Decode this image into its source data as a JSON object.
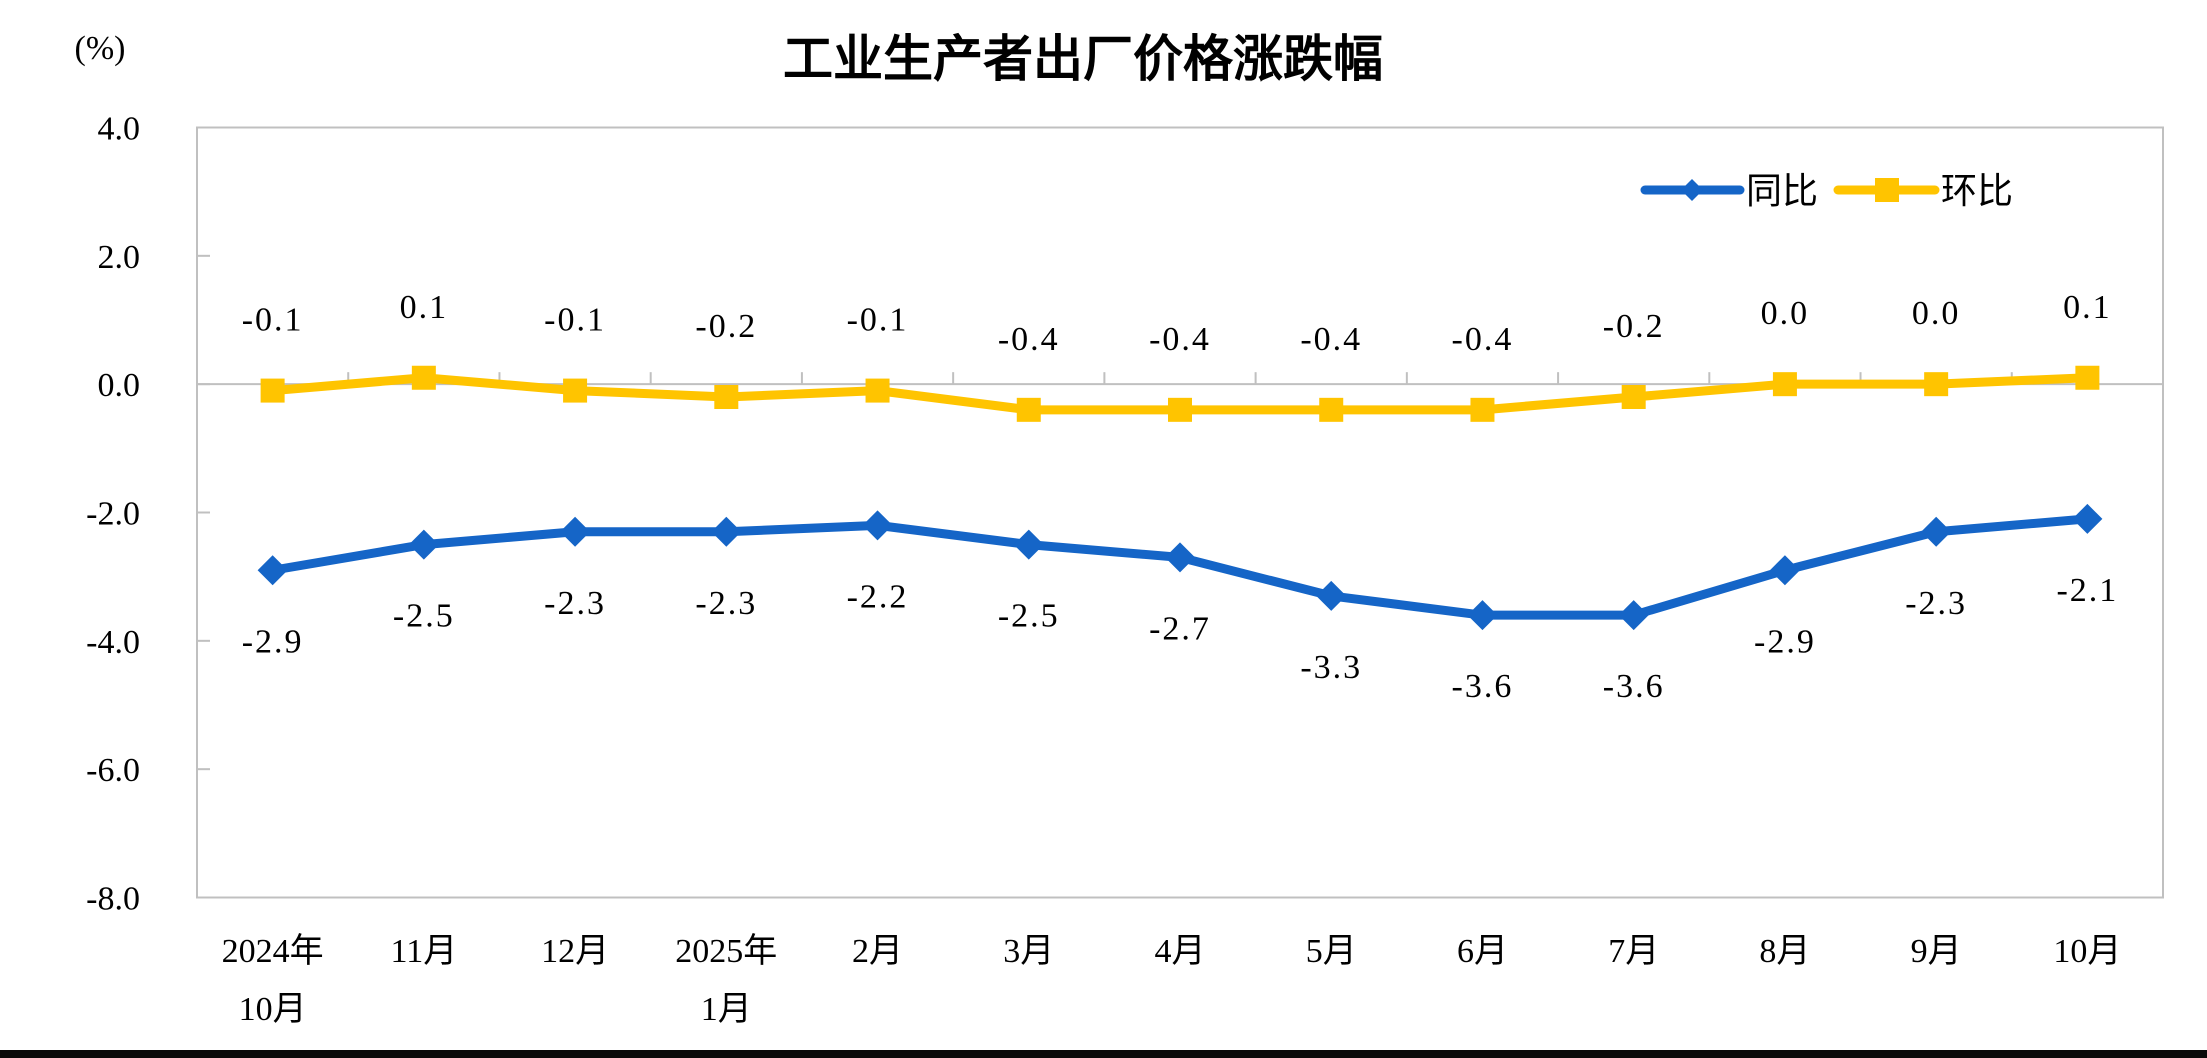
{
  "title": "工业生产者出厂价格涨跌幅",
  "unit_label": "(%)",
  "legend": [
    {
      "label": "同比",
      "color": "#1565C7",
      "marker": "diamond"
    },
    {
      "label": "环比",
      "color": "#FFC400",
      "marker": "square"
    }
  ],
  "colors": {
    "tongbi_blue": "#1565C7",
    "huanbi_yellow": "#FFC400",
    "axis_gray": "#C0C0C0",
    "text_black": "#000000",
    "bottom_bar_black": "#0a0a0a"
  },
  "chart_data": {
    "type": "line",
    "title": "工业生产者出厂价格涨跌幅",
    "ylabel": "(%)",
    "xlabel": "",
    "ylim": [
      -8.0,
      4.0
    ],
    "grid": "zero-axis-line-only",
    "legend_position": "top-right-inside",
    "categories": [
      [
        "2024年",
        "10月"
      ],
      [
        "11月"
      ],
      [
        "12月"
      ],
      [
        "2025年",
        "1月"
      ],
      [
        "2月"
      ],
      [
        "3月"
      ],
      [
        "4月"
      ],
      [
        "5月"
      ],
      [
        "6月"
      ],
      [
        "7月"
      ],
      [
        "8月"
      ],
      [
        "9月"
      ],
      [
        "10月"
      ]
    ],
    "yticks": {
      "values": [
        4,
        2,
        0,
        -2,
        -4,
        -6,
        -8
      ],
      "labels": [
        "4.0",
        "2.0",
        "0.0",
        "-2.0",
        "-4.0",
        "-6.0",
        "-8.0"
      ]
    },
    "series": [
      {
        "name": "同比",
        "color": "#1565C7",
        "marker": "diamond",
        "label_position": "below",
        "values": [
          -2.9,
          -2.5,
          -2.3,
          -2.3,
          -2.2,
          -2.5,
          -2.7,
          -3.3,
          -3.6,
          -3.6,
          -2.9,
          -2.3,
          -2.1
        ],
        "labels": [
          "-2.9",
          "-2.5",
          "-2.3",
          "-2.3",
          "-2.2",
          "-2.5",
          "-2.7",
          "-3.3",
          "-3.6",
          "-3.6",
          "-2.9",
          "-2.3",
          "-2.1"
        ]
      },
      {
        "name": "环比",
        "color": "#FFC400",
        "marker": "square",
        "label_position": "above",
        "values": [
          -0.1,
          0.1,
          -0.1,
          -0.2,
          -0.1,
          -0.4,
          -0.4,
          -0.4,
          -0.4,
          -0.2,
          0.0,
          0.0,
          0.1
        ],
        "labels": [
          "-0.1",
          "0.1",
          "-0.1",
          "-0.2",
          "-0.1",
          "-0.4",
          "-0.4",
          "-0.4",
          "-0.4",
          "-0.2",
          "0.0",
          "0.0",
          "0.1"
        ]
      }
    ]
  }
}
